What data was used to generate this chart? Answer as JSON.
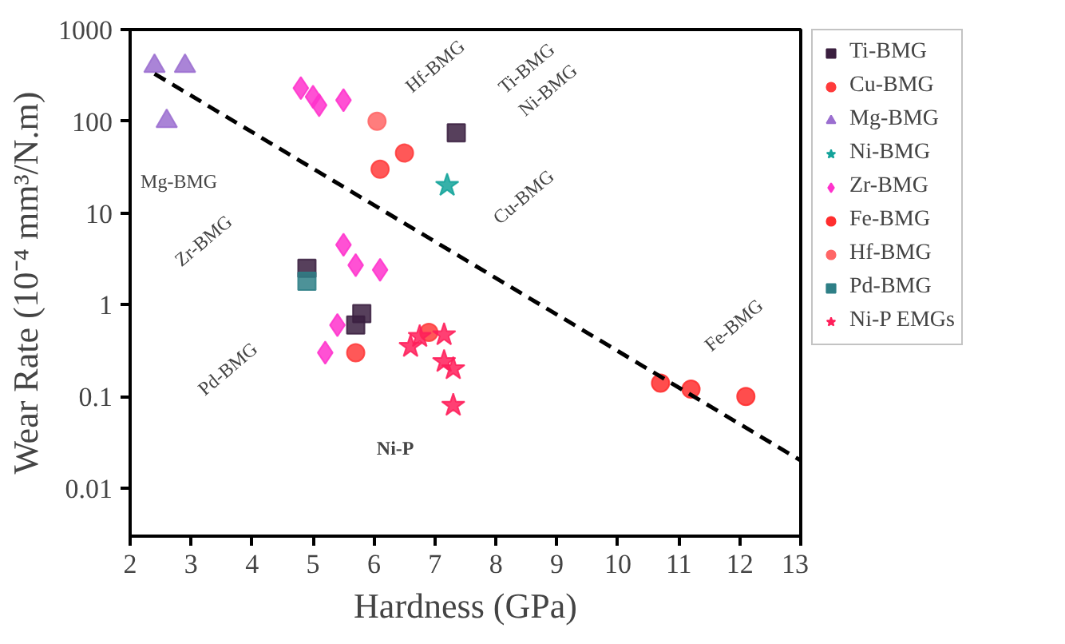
{
  "chart_data": {
    "type": "scatter",
    "xlabel": "Hardness (GPa)",
    "ylabel": "Wear Rate (10⁻⁴ mm³/N.m)",
    "xlim": [
      2,
      13
    ],
    "xticks": [
      2,
      3,
      4,
      5,
      6,
      7,
      8,
      9,
      10,
      11,
      12,
      13
    ],
    "ylim": [
      0.003,
      1000
    ],
    "yticks": [
      0.01,
      0.1,
      1,
      10,
      100,
      1000
    ],
    "log": "y",
    "grid": false,
    "legend": "right",
    "series": [
      {
        "name": "Ti-BMG",
        "color": "#3a1f3f",
        "marker": "square",
        "x": [
          4.9,
          5.8,
          5.7,
          7.35
        ],
        "values": [
          2.5,
          0.8,
          0.6,
          75
        ]
      },
      {
        "name": "Cu-BMG",
        "color": "#ff3b3b",
        "marker": "circle",
        "x": [
          6.1,
          6.5,
          5.7,
          6.9
        ],
        "values": [
          30,
          45,
          0.3,
          0.5
        ]
      },
      {
        "name": "Mg-BMG",
        "color": "#9b6fd0",
        "marker": "triangle",
        "x": [
          2.4,
          2.9,
          2.6
        ],
        "values": [
          400,
          400,
          100
        ]
      },
      {
        "name": "Ni-BMG",
        "color": "#13a39a",
        "marker": "star",
        "x": [
          7.2
        ],
        "values": [
          20
        ]
      },
      {
        "name": "Zr-BMG",
        "color": "#ff33cc",
        "marker": "diamond",
        "x": [
          4.8,
          5.0,
          5.1,
          5.5,
          5.5,
          5.7,
          6.1,
          5.4,
          5.2
        ],
        "values": [
          230,
          185,
          150,
          170,
          4.5,
          2.7,
          2.4,
          0.6,
          0.3
        ]
      },
      {
        "name": "Fe-BMG",
        "color": "#ff2e2e",
        "marker": "circle",
        "x": [
          10.7,
          11.2,
          12.1
        ],
        "values": [
          0.14,
          0.12,
          0.1
        ]
      },
      {
        "name": "Hf-BMG",
        "color": "#ff6666",
        "marker": "circle",
        "x": [
          6.05
        ],
        "values": [
          100
        ]
      },
      {
        "name": "Pd-BMG",
        "color": "#2e7f86",
        "marker": "square",
        "x": [
          4.9
        ],
        "values": [
          1.8
        ]
      },
      {
        "name": "Ni-P EMGs",
        "color": "#ff1f5a",
        "marker": "star",
        "x": [
          6.6,
          6.75,
          7.15,
          7.15,
          7.3,
          7.3
        ],
        "values": [
          0.35,
          0.45,
          0.47,
          0.24,
          0.2,
          0.08
        ]
      },
      {
        "type": "line",
        "color": "#000000",
        "line_style": "dashed",
        "marker": "none",
        "x": [
          2.4,
          13
        ],
        "values": [
          330,
          0.02
        ]
      }
    ],
    "annotations": [
      "Mg-BMG",
      "Zr-BMG",
      "Hf-BMG",
      "Ti-BMG",
      "Ni-BMG",
      "Cu-BMG",
      "Pd-BMG",
      "Ni-P",
      "Fe-BMG"
    ]
  }
}
